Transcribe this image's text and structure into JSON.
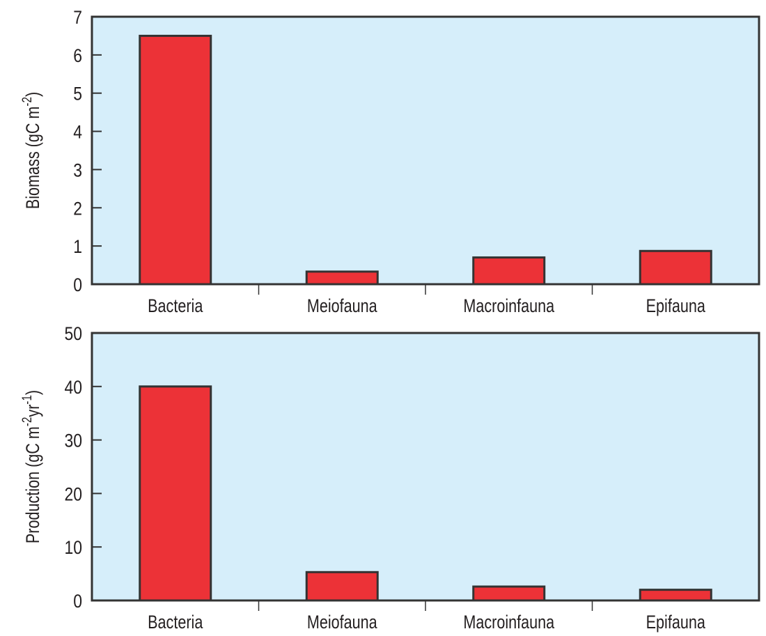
{
  "colors": {
    "plot_bg": "#d6eefa",
    "bar": "#ec3237",
    "stroke": "#333333"
  },
  "chart_data": [
    {
      "type": "bar",
      "title": "",
      "xlabel": "",
      "ylabel": {
        "main": "Biomass (gC m",
        "sup1": "-2",
        "mid": "",
        "sup2": "",
        "end": ")"
      },
      "categories": [
        "Bacteria",
        "Meiofauna",
        "Macroinfauna",
        "Epifauna"
      ],
      "values": [
        6.5,
        0.33,
        0.7,
        0.87
      ],
      "ylim": [
        0,
        7
      ],
      "yticks": [
        "0",
        "1",
        "2",
        "3",
        "4",
        "5",
        "6",
        "7"
      ],
      "grid": false
    },
    {
      "type": "bar",
      "title": "",
      "xlabel": "",
      "ylabel": {
        "main": "Production (gC m",
        "sup1": "-2",
        "mid": "yr",
        "sup2": "-1",
        "end": ")"
      },
      "categories": [
        "Bacteria",
        "Meiofauna",
        "Macroinfauna",
        "Epifauna"
      ],
      "values": [
        40,
        5.3,
        2.6,
        2.0
      ],
      "ylim": [
        0,
        50
      ],
      "yticks": [
        "0",
        "10",
        "20",
        "30",
        "40",
        "50"
      ],
      "grid": false
    }
  ]
}
